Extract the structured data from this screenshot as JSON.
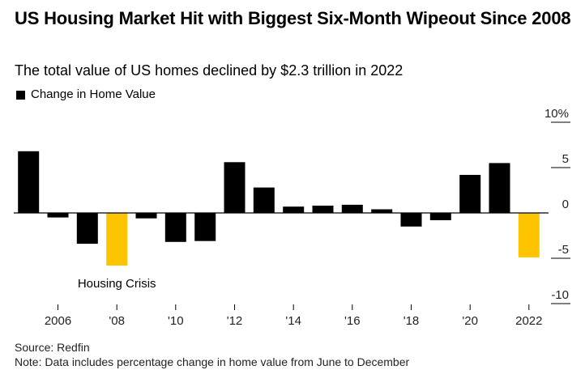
{
  "header": {
    "title": "US Housing Market Hit with Biggest Six-Month Wipeout Since 2008",
    "subtitle": "The total value of US homes declined by $2.3 trillion in 2022"
  },
  "legend": {
    "label": "Change in Home Value",
    "color": "#000000"
  },
  "footer": {
    "source": "Source: Redfin",
    "note": "Note: Data includes percentage change in home value from June to December"
  },
  "chart_data": {
    "type": "bar",
    "categories": [
      "2005",
      "2006",
      "2007",
      "2008",
      "2009",
      "2010",
      "2011",
      "2012",
      "2013",
      "2014",
      "2015",
      "2016",
      "2017",
      "2018",
      "2019",
      "2020",
      "2021",
      "2022"
    ],
    "series": [
      {
        "name": "Change in Home Value",
        "values": [
          6.8,
          -0.5,
          -3.4,
          -5.8,
          -0.6,
          -3.2,
          -3.1,
          5.6,
          2.8,
          0.7,
          0.8,
          0.9,
          0.4,
          -1.5,
          -0.8,
          4.2,
          5.5,
          -4.9
        ]
      }
    ],
    "highlight_categories": [
      "2008",
      "2022"
    ],
    "colors": {
      "default": "#000000",
      "highlight": "#FFC400"
    },
    "ylim": [
      -10,
      10
    ],
    "yticks": [
      {
        "value": 10,
        "label": "10%"
      },
      {
        "value": 5,
        "label": "5"
      },
      {
        "value": 0,
        "label": "0"
      },
      {
        "value": -5,
        "label": "-5"
      },
      {
        "value": -10,
        "label": "-10"
      }
    ],
    "xticks": [
      {
        "category": "2006",
        "label": "2006"
      },
      {
        "category": "2008",
        "label": "'08"
      },
      {
        "category": "2010",
        "label": "'10"
      },
      {
        "category": "2012",
        "label": "'12"
      },
      {
        "category": "2014",
        "label": "'14"
      },
      {
        "category": "2016",
        "label": "'16"
      },
      {
        "category": "2018",
        "label": "'18"
      },
      {
        "category": "2020",
        "label": "'20"
      },
      {
        "category": "2022",
        "label": "2022"
      }
    ],
    "annotations": [
      {
        "category": "2008",
        "text": "Housing Crisis"
      }
    ],
    "title": "",
    "xlabel": "",
    "ylabel": "",
    "legend_position": "top-left",
    "grid": false
  }
}
